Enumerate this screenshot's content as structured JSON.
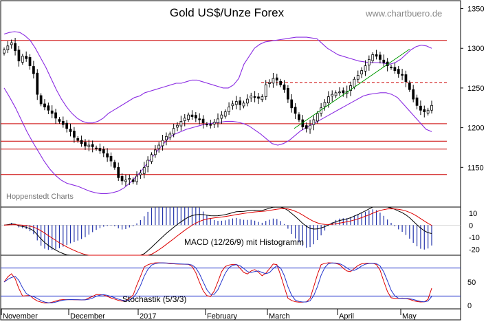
{
  "header": {
    "title": "Gold US$/Unze Forex",
    "website": "www.chartbuero.de",
    "watermark": "Hoppenstedt Charts"
  },
  "colors": {
    "candle": "#000000",
    "bollinger": "#8a2be2",
    "support_resistance": "#cc0000",
    "trendline": "#009900",
    "macd_line": "#000000",
    "macd_signal": "#dd0000",
    "macd_histogram": "#2233aa",
    "stoch_k": "#dd0000",
    "stoch_d": "#2233cc",
    "stoch_levels": "#2233cc"
  },
  "chart_data": [
    {
      "type": "candlestick",
      "title": "Gold US$/Unze Forex",
      "ylim": [
        1100,
        1360
      ],
      "y_ticks": [
        1150,
        1200,
        1250,
        1300,
        1350
      ],
      "x_labels": [
        "November",
        "December",
        "2017",
        "February",
        "March",
        "April",
        "May"
      ],
      "close": [
        1298,
        1303,
        1307,
        1297,
        1284,
        1290,
        1287,
        1278,
        1268,
        1242,
        1230,
        1226,
        1222,
        1218,
        1212,
        1208,
        1204,
        1199,
        1195,
        1188,
        1184,
        1180,
        1177,
        1178,
        1176,
        1174,
        1171,
        1168,
        1163,
        1158,
        1150,
        1137,
        1133,
        1134,
        1136,
        1132,
        1139,
        1143,
        1150,
        1159,
        1166,
        1172,
        1178,
        1184,
        1189,
        1192,
        1199,
        1203,
        1208,
        1212,
        1216,
        1214,
        1212,
        1210,
        1206,
        1204,
        1203,
        1207,
        1211,
        1216,
        1220,
        1226,
        1230,
        1233,
        1229,
        1231,
        1236,
        1240,
        1238,
        1237,
        1239,
        1254,
        1257,
        1262,
        1260,
        1254,
        1248,
        1236,
        1225,
        1218,
        1210,
        1201,
        1199,
        1203,
        1210,
        1218,
        1225,
        1232,
        1239,
        1242,
        1244,
        1245,
        1244,
        1246,
        1253,
        1261,
        1266,
        1272,
        1278,
        1286,
        1292,
        1290,
        1286,
        1282,
        1278,
        1276,
        1272,
        1268,
        1266,
        1258,
        1248,
        1236,
        1228,
        1222,
        1220,
        1222,
        1228
      ],
      "bollinger_upper": [
        1318,
        1320,
        1321,
        1320,
        1316,
        1310,
        1300,
        1288,
        1276,
        1262,
        1248,
        1236,
        1226,
        1218,
        1212,
        1208,
        1206,
        1206,
        1208,
        1212,
        1218,
        1222,
        1226,
        1230,
        1234,
        1238,
        1240,
        1244,
        1246,
        1248,
        1250,
        1252,
        1254,
        1256,
        1256,
        1258,
        1260,
        1260,
        1258,
        1256,
        1254,
        1252,
        1250,
        1250,
        1254,
        1262,
        1280,
        1290,
        1300,
        1305,
        1308,
        1309,
        1310,
        1311,
        1312,
        1313,
        1314,
        1314,
        1314,
        1313,
        1312,
        1306,
        1300,
        1296,
        1292,
        1290,
        1288,
        1286,
        1284,
        1283,
        1282,
        1282,
        1282,
        1281,
        1280,
        1282,
        1286,
        1292,
        1298,
        1302,
        1304,
        1303,
        1300
      ],
      "bollinger_lower": [
        1250,
        1238,
        1225,
        1210,
        1195,
        1182,
        1170,
        1158,
        1148,
        1140,
        1134,
        1130,
        1128,
        1126,
        1123,
        1120,
        1118,
        1117,
        1117,
        1118,
        1120,
        1124,
        1130,
        1137,
        1145,
        1154,
        1163,
        1172,
        1180,
        1188,
        1192,
        1195,
        1198,
        1200,
        1202,
        1204,
        1205,
        1206,
        1207,
        1208,
        1208,
        1207,
        1205,
        1202,
        1197,
        1192,
        1186,
        1180,
        1178,
        1180,
        1184,
        1190,
        1196,
        1200,
        1204,
        1208,
        1212,
        1216,
        1220,
        1224,
        1228,
        1232,
        1236,
        1240,
        1242,
        1243,
        1244,
        1244,
        1242,
        1238,
        1230,
        1222,
        1214,
        1206,
        1198,
        1195
      ]
    },
    {
      "type": "line",
      "title": "MACD (12/26/9) mit Histogramm",
      "ylim": [
        -25,
        15
      ],
      "y_ticks": [
        10,
        0,
        -10,
        -20
      ],
      "y_tick_labels": [
        "10",
        "0",
        "-10",
        "-20"
      ]
    },
    {
      "type": "line",
      "title": "Stochastik (5/3/3)",
      "ylim": [
        0,
        100
      ],
      "y_ticks": [
        50,
        0
      ],
      "levels": [
        80,
        20
      ]
    }
  ]
}
